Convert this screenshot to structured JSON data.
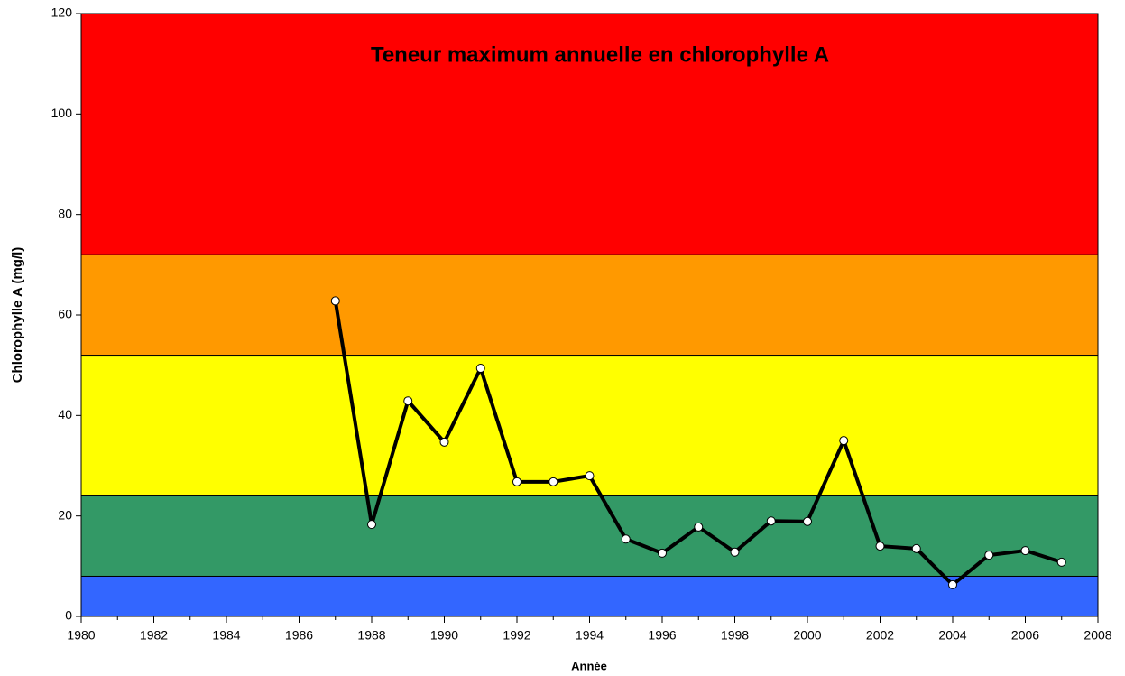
{
  "chart_data": {
    "type": "line",
    "title": "Teneur maximum annuelle en chlorophylle A",
    "x_label": "Année",
    "y_label": "Chlorophylle A (mg/l)",
    "x": [
      1987,
      1988,
      1989,
      1990,
      1991,
      1992,
      1993,
      1994,
      1995,
      1996,
      1997,
      1998,
      1999,
      2000,
      2001,
      2002,
      2003,
      2004,
      2005,
      2006,
      2007
    ],
    "series": [
      {
        "name": "Chlorophylle A",
        "color": "#000000",
        "values": [
          62.8,
          18.3,
          42.9,
          34.7,
          49.4,
          26.8,
          26.8,
          28,
          15.4,
          12.6,
          17.8,
          12.8,
          19,
          18.9,
          35,
          14,
          13.5,
          6.3,
          12.2,
          13.1,
          10.8
        ]
      }
    ],
    "bands": [
      {
        "from": 0,
        "to": 8,
        "color": "#3366ff"
      },
      {
        "from": 8,
        "to": 24,
        "color": "#339966"
      },
      {
        "from": 24,
        "to": 52,
        "color": "#ffff00"
      },
      {
        "from": 52,
        "to": 72,
        "color": "#ff9900"
      },
      {
        "from": 72,
        "to": 120,
        "color": "#ff0000"
      }
    ],
    "xlim": [
      1980,
      2008
    ],
    "xticks": [
      1980,
      1982,
      1984,
      1986,
      1988,
      1990,
      1992,
      1994,
      1996,
      1998,
      2000,
      2002,
      2004,
      2006,
      2008
    ],
    "ylim": [
      0,
      120
    ],
    "yticks": [
      0,
      20,
      40,
      60,
      80,
      100,
      120
    ]
  }
}
